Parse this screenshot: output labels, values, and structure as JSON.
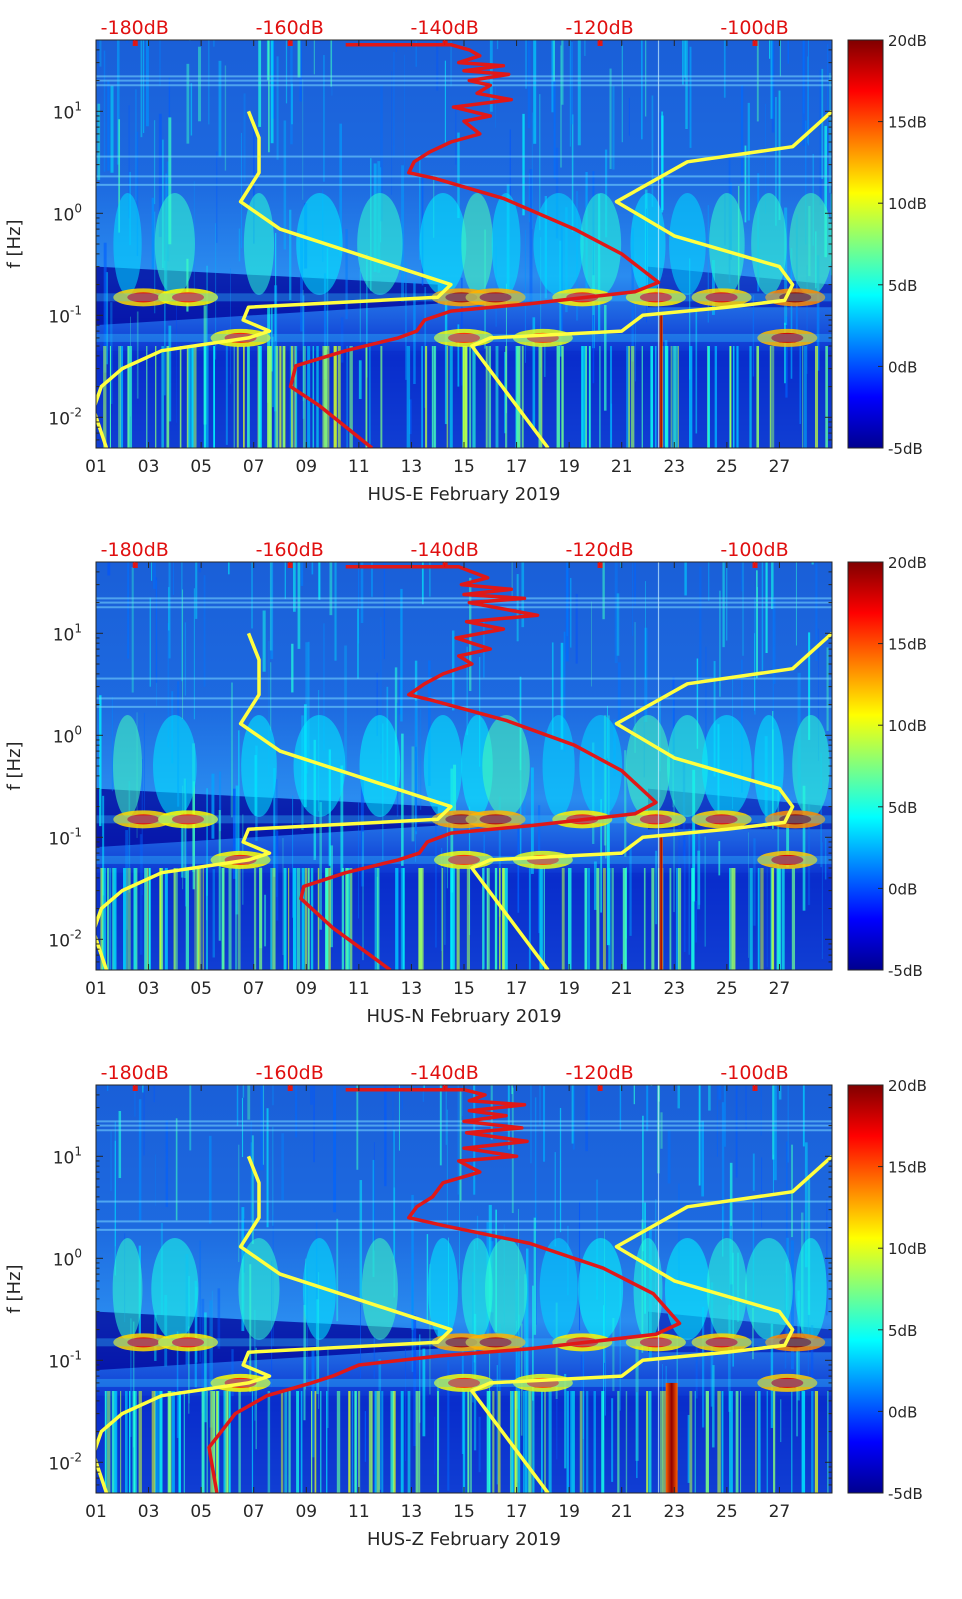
{
  "chart_data": [
    {
      "type": "heatmap",
      "station": "HUS-E",
      "xlabel": "HUS-E February 2019",
      "ylabel": "f [Hz]",
      "x_ticks": [
        "01",
        "03",
        "05",
        "07",
        "09",
        "11",
        "13",
        "15",
        "17",
        "19",
        "21",
        "23",
        "25",
        "27"
      ],
      "x_range_days": [
        1,
        29
      ],
      "y_scale": "log",
      "y_range_hz": [
        0.005,
        50
      ],
      "y_ticks": [
        {
          "base": "10",
          "exp": "-2",
          "value": 0.01
        },
        {
          "base": "10",
          "exp": "-1",
          "value": 0.1
        },
        {
          "base": "10",
          "exp": "0",
          "value": 1
        },
        {
          "base": "10",
          "exp": "1",
          "value": 10
        }
      ],
      "top_axis_labels": [
        "-180dB",
        "-160dB",
        "-140dB",
        "-120dB",
        "-100dB"
      ],
      "top_axis_range_db": [
        -185,
        -90
      ],
      "colorbar": {
        "range_db": [
          -5,
          20
        ],
        "ticks": [
          "-5dB",
          "0dB",
          "5dB",
          "10dB",
          "15dB",
          "20dB"
        ],
        "colormap": "jet"
      },
      "bands": [
        {
          "f": 0.15,
          "days": [
            [
              2.8,
              0.65
            ],
            [
              4.5,
              0.5
            ],
            [
              14.9,
              0.85
            ],
            [
              16.2,
              0.8
            ],
            [
              19.5,
              0.55
            ],
            [
              22.3,
              0.55
            ],
            [
              24.8,
              0.65
            ],
            [
              27.6,
              0.95
            ]
          ]
        },
        {
          "f": 0.06,
          "days": [
            [
              6.5,
              0.5
            ],
            [
              15,
              0.45
            ],
            [
              18,
              0.4
            ],
            [
              27.3,
              0.75
            ]
          ]
        }
      ],
      "yellow_curves": [
        {
          "points": [
            [
              6.8,
              10
            ],
            [
              7.2,
              5.5
            ],
            [
              7.2,
              2.5
            ],
            [
              6.5,
              1.3
            ],
            [
              8,
              0.7
            ],
            [
              14.5,
              0.2
            ],
            [
              14,
              0.15
            ],
            [
              6.8,
              0.12
            ],
            [
              6.6,
              0.09
            ],
            [
              7.6,
              0.07
            ],
            [
              6.8,
              0.06
            ],
            [
              3.5,
              0.045
            ],
            [
              2,
              0.03
            ],
            [
              1.2,
              0.02
            ],
            [
              0.9,
              0.012
            ],
            [
              1.4,
              0.005
            ]
          ]
        },
        {
          "points": [
            [
              29,
              10
            ],
            [
              27.5,
              4.5
            ],
            [
              23.5,
              3.2
            ],
            [
              20.8,
              1.3
            ],
            [
              23,
              0.6
            ],
            [
              27,
              0.3
            ],
            [
              27.5,
              0.2
            ],
            [
              27.2,
              0.14
            ],
            [
              25,
              0.12
            ],
            [
              21.8,
              0.1
            ],
            [
              21,
              0.07
            ],
            [
              16,
              0.06
            ],
            [
              15.3,
              0.05
            ],
            [
              18.2,
              0.005
            ]
          ]
        }
      ],
      "red_curve": {
        "points": [
          [
            10.5,
            45
          ],
          [
            14.5,
            45
          ],
          [
            15.2,
            40
          ],
          [
            15.6,
            35
          ],
          [
            14.8,
            30
          ],
          [
            16.5,
            28
          ],
          [
            15,
            25
          ],
          [
            16.7,
            23
          ],
          [
            15.2,
            20
          ],
          [
            16,
            18
          ],
          [
            15.5,
            15
          ],
          [
            16.8,
            13
          ],
          [
            14.6,
            11
          ],
          [
            16,
            9
          ],
          [
            15,
            8
          ],
          [
            15.6,
            6
          ],
          [
            14.5,
            5
          ],
          [
            13.7,
            4
          ],
          [
            13.1,
            3.2
          ],
          [
            12.9,
            2.5
          ],
          [
            13.9,
            2.2
          ],
          [
            16.5,
            1.4
          ],
          [
            19.2,
            0.7
          ],
          [
            21,
            0.4
          ],
          [
            22.4,
            0.21
          ],
          [
            21.5,
            0.17
          ],
          [
            17.5,
            0.13
          ],
          [
            14.5,
            0.11
          ],
          [
            13.5,
            0.09
          ],
          [
            13.2,
            0.07
          ],
          [
            12.5,
            0.06
          ],
          [
            10.5,
            0.045
          ],
          [
            8.6,
            0.032
          ],
          [
            8.4,
            0.02
          ],
          [
            9.5,
            0.013
          ],
          [
            11.5,
            0.005
          ]
        ]
      },
      "red_spike": {
        "day": 22.5,
        "fmin": 0.005,
        "fmax": 0.1,
        "width_days": 0.12
      }
    },
    {
      "type": "heatmap",
      "station": "HUS-N",
      "xlabel": "HUS-N February 2019",
      "ylabel": "f [Hz]",
      "x_ticks": [
        "01",
        "03",
        "05",
        "07",
        "09",
        "11",
        "13",
        "15",
        "17",
        "19",
        "21",
        "23",
        "25",
        "27"
      ],
      "x_range_days": [
        1,
        29
      ],
      "y_scale": "log",
      "y_range_hz": [
        0.005,
        50
      ],
      "y_ticks": [
        {
          "base": "10",
          "exp": "-2",
          "value": 0.01
        },
        {
          "base": "10",
          "exp": "-1",
          "value": 0.1
        },
        {
          "base": "10",
          "exp": "0",
          "value": 1
        },
        {
          "base": "10",
          "exp": "1",
          "value": 10
        }
      ],
      "top_axis_labels": [
        "-180dB",
        "-160dB",
        "-140dB",
        "-120dB",
        "-100dB"
      ],
      "top_axis_range_db": [
        -185,
        -90
      ],
      "colorbar": {
        "range_db": [
          -5,
          20
        ],
        "ticks": [
          "-5dB",
          "0dB",
          "5dB",
          "10dB",
          "15dB",
          "20dB"
        ],
        "colormap": "jet"
      },
      "bands": [
        {
          "f": 0.15,
          "days": [
            [
              2.8,
              0.65
            ],
            [
              4.5,
              0.5
            ],
            [
              14.9,
              0.85
            ],
            [
              16.2,
              0.8
            ],
            [
              19.5,
              0.55
            ],
            [
              22.3,
              0.55
            ],
            [
              24.8,
              0.65
            ],
            [
              27.6,
              0.95
            ]
          ]
        },
        {
          "f": 0.06,
          "days": [
            [
              6.5,
              0.5
            ],
            [
              15,
              0.45
            ],
            [
              18,
              0.4
            ],
            [
              27.3,
              0.7
            ]
          ]
        }
      ],
      "yellow_curves": [
        {
          "points": [
            [
              6.8,
              10
            ],
            [
              7.2,
              5.5
            ],
            [
              7.2,
              2.5
            ],
            [
              6.5,
              1.3
            ],
            [
              8,
              0.7
            ],
            [
              14.5,
              0.2
            ],
            [
              14,
              0.15
            ],
            [
              6.8,
              0.12
            ],
            [
              6.6,
              0.09
            ],
            [
              7.6,
              0.07
            ],
            [
              6.8,
              0.06
            ],
            [
              3.5,
              0.045
            ],
            [
              2,
              0.03
            ],
            [
              1.2,
              0.02
            ],
            [
              0.9,
              0.012
            ],
            [
              1.4,
              0.005
            ]
          ]
        },
        {
          "points": [
            [
              29,
              10
            ],
            [
              27.5,
              4.5
            ],
            [
              23.5,
              3.2
            ],
            [
              20.8,
              1.3
            ],
            [
              23,
              0.6
            ],
            [
              27,
              0.3
            ],
            [
              27.5,
              0.2
            ],
            [
              27.2,
              0.14
            ],
            [
              25,
              0.12
            ],
            [
              21.8,
              0.1
            ],
            [
              21,
              0.07
            ],
            [
              16,
              0.06
            ],
            [
              15.3,
              0.05
            ],
            [
              18.2,
              0.005
            ]
          ]
        }
      ],
      "red_curve": {
        "points": [
          [
            10.5,
            45
          ],
          [
            14.8,
            45
          ],
          [
            15.3,
            40
          ],
          [
            15.9,
            35
          ],
          [
            14.9,
            30
          ],
          [
            16.8,
            27
          ],
          [
            15,
            24
          ],
          [
            17.3,
            22
          ],
          [
            15.2,
            20
          ],
          [
            17.8,
            15
          ],
          [
            15.1,
            13
          ],
          [
            16.5,
            11
          ],
          [
            14.7,
            9
          ],
          [
            16,
            7
          ],
          [
            14.8,
            6
          ],
          [
            15.3,
            5
          ],
          [
            14.2,
            4
          ],
          [
            13.5,
            3.2
          ],
          [
            12.9,
            2.5
          ],
          [
            13.8,
            2.2
          ],
          [
            16.6,
            1.4
          ],
          [
            19.2,
            0.8
          ],
          [
            21,
            0.45
          ],
          [
            22.3,
            0.22
          ],
          [
            21.5,
            0.17
          ],
          [
            17.5,
            0.13
          ],
          [
            14.5,
            0.11
          ],
          [
            13.6,
            0.09
          ],
          [
            13.3,
            0.07
          ],
          [
            12.5,
            0.06
          ],
          [
            10.5,
            0.045
          ],
          [
            8.9,
            0.033
          ],
          [
            8.8,
            0.025
          ],
          [
            10,
            0.013
          ],
          [
            12.2,
            0.005
          ]
        ]
      },
      "red_spike": {
        "day": 22.5,
        "fmin": 0.005,
        "fmax": 0.1,
        "width_days": 0.12
      }
    },
    {
      "type": "heatmap",
      "station": "HUS-Z",
      "xlabel": "HUS-Z February 2019",
      "ylabel": "f [Hz]",
      "x_ticks": [
        "01",
        "03",
        "05",
        "07",
        "09",
        "11",
        "13",
        "15",
        "17",
        "19",
        "21",
        "23",
        "25",
        "27"
      ],
      "x_range_days": [
        1,
        29
      ],
      "y_scale": "log",
      "y_range_hz": [
        0.005,
        50
      ],
      "y_ticks": [
        {
          "base": "10",
          "exp": "-2",
          "value": 0.01
        },
        {
          "base": "10",
          "exp": "-1",
          "value": 0.1
        },
        {
          "base": "10",
          "exp": "0",
          "value": 1
        },
        {
          "base": "10",
          "exp": "1",
          "value": 10
        }
      ],
      "top_axis_labels": [
        "-180dB",
        "-160dB",
        "-140dB",
        "-120dB",
        "-100dB"
      ],
      "top_axis_range_db": [
        -185,
        -90
      ],
      "colorbar": {
        "range_db": [
          -5,
          20
        ],
        "ticks": [
          "-5dB",
          "0dB",
          "5dB",
          "10dB",
          "15dB",
          "20dB"
        ],
        "colormap": "jet"
      },
      "bands": [
        {
          "f": 0.15,
          "days": [
            [
              2.8,
              0.65
            ],
            [
              4.5,
              0.55
            ],
            [
              14.9,
              0.85
            ],
            [
              16.2,
              0.8
            ],
            [
              19.5,
              0.55
            ],
            [
              22.3,
              0.55
            ],
            [
              24.8,
              0.65
            ],
            [
              27.6,
              0.95
            ]
          ]
        },
        {
          "f": 0.06,
          "days": [
            [
              6.5,
              0.5
            ],
            [
              15,
              0.45
            ],
            [
              18,
              0.4
            ],
            [
              27.3,
              0.7
            ]
          ]
        }
      ],
      "yellow_curves": [
        {
          "points": [
            [
              6.8,
              10
            ],
            [
              7.2,
              5.5
            ],
            [
              7.2,
              2.5
            ],
            [
              6.5,
              1.3
            ],
            [
              8,
              0.7
            ],
            [
              14.5,
              0.2
            ],
            [
              14,
              0.15
            ],
            [
              6.8,
              0.12
            ],
            [
              6.6,
              0.09
            ],
            [
              7.6,
              0.07
            ],
            [
              6.8,
              0.06
            ],
            [
              3.5,
              0.045
            ],
            [
              2,
              0.03
            ],
            [
              1.2,
              0.02
            ],
            [
              0.9,
              0.012
            ],
            [
              1.4,
              0.005
            ]
          ]
        },
        {
          "points": [
            [
              29,
              10
            ],
            [
              27.5,
              4.5
            ],
            [
              23.5,
              3.2
            ],
            [
              20.8,
              1.3
            ],
            [
              23,
              0.6
            ],
            [
              27,
              0.3
            ],
            [
              27.5,
              0.2
            ],
            [
              27.2,
              0.14
            ],
            [
              25,
              0.12
            ],
            [
              21.8,
              0.1
            ],
            [
              21,
              0.07
            ],
            [
              16,
              0.06
            ],
            [
              15.3,
              0.05
            ],
            [
              18.2,
              0.005
            ]
          ]
        }
      ],
      "red_curve": {
        "points": [
          [
            10.5,
            45
          ],
          [
            15,
            45
          ],
          [
            15.8,
            40
          ],
          [
            15.2,
            35
          ],
          [
            17.3,
            32
          ],
          [
            15.2,
            28
          ],
          [
            16.6,
            25
          ],
          [
            15,
            22
          ],
          [
            17.2,
            19
          ],
          [
            15.1,
            17
          ],
          [
            17.4,
            14
          ],
          [
            15,
            12
          ],
          [
            17,
            10
          ],
          [
            14.8,
            9
          ],
          [
            15.6,
            7
          ],
          [
            14.2,
            5.5
          ],
          [
            13.8,
            4
          ],
          [
            13.2,
            3.2
          ],
          [
            12.9,
            2.5
          ],
          [
            14.2,
            2.1
          ],
          [
            17.5,
            1.4
          ],
          [
            20.3,
            0.8
          ],
          [
            22.2,
            0.45
          ],
          [
            23.2,
            0.23
          ],
          [
            22.3,
            0.18
          ],
          [
            17.5,
            0.13
          ],
          [
            14,
            0.11
          ],
          [
            11,
            0.09
          ],
          [
            10,
            0.07
          ],
          [
            9.2,
            0.06
          ],
          [
            7.5,
            0.045
          ],
          [
            6.3,
            0.03
          ],
          [
            5.3,
            0.014
          ],
          [
            5.6,
            0.005
          ]
        ]
      },
      "red_spike": {
        "day": 22.9,
        "fmin": 0.005,
        "fmax": 0.06,
        "width_days": 0.45
      }
    }
  ]
}
